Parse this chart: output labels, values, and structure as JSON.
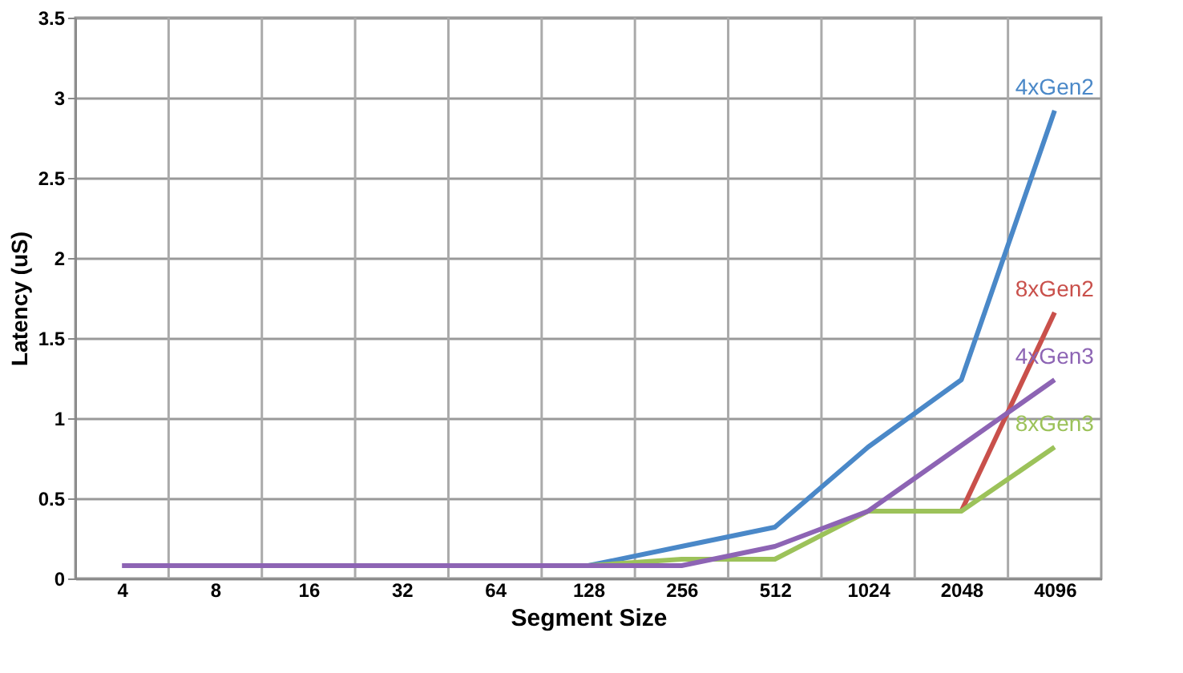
{
  "chart_data": {
    "type": "line",
    "xlabel": "Segment Size",
    "ylabel": "Latency (uS)",
    "categories": [
      "4",
      "8",
      "16",
      "32",
      "64",
      "128",
      "256",
      "512",
      "1024",
      "2048",
      "4096"
    ],
    "series": [
      {
        "name": "4xGen2",
        "color": "#4a88c8",
        "values": [
          null,
          null,
          null,
          null,
          null,
          0.08,
          0.2,
          0.32,
          0.82,
          1.24,
          2.92
        ]
      },
      {
        "name": "8xGen2",
        "color": "#c9504b",
        "values": [
          null,
          null,
          null,
          null,
          null,
          null,
          null,
          null,
          null,
          0.42,
          1.66
        ]
      },
      {
        "name": "8xGen3",
        "color": "#9cc25a",
        "values": [
          null,
          null,
          null,
          null,
          null,
          0.08,
          0.12,
          0.12,
          0.42,
          0.42,
          0.82
        ]
      },
      {
        "name": "4xGen3",
        "color": "#8d64b4",
        "values": [
          0.08,
          0.08,
          0.08,
          0.08,
          0.08,
          0.08,
          0.08,
          0.2,
          0.42,
          0.83,
          1.24
        ]
      }
    ],
    "ylim": [
      0,
      3.5
    ],
    "yticks": [
      0,
      0.5,
      1,
      1.5,
      2,
      2.5,
      3,
      3.5
    ],
    "grid": true,
    "marker": "none",
    "line_style": "solid"
  }
}
